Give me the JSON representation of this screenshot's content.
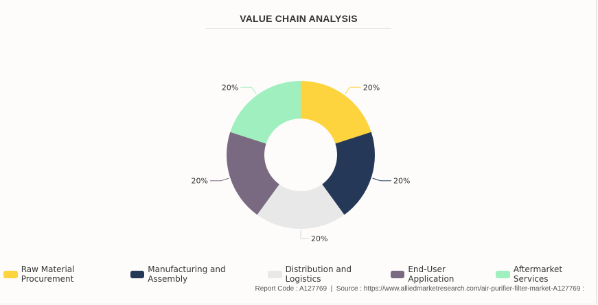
{
  "chart_data": {
    "type": "pie",
    "subtype": "donut",
    "title": "VALUE CHAIN ANALYSIS",
    "categories": [
      "Raw Material Procurement",
      "Manufacturing and Assembly",
      "Distribution and Logistics",
      "End-User Application",
      "Aftermarket Services"
    ],
    "values": [
      20,
      20,
      20,
      20,
      20
    ],
    "labels": [
      "20%",
      "20%",
      "20%",
      "20%",
      "20%"
    ],
    "colors": [
      "#fdd43e",
      "#253858",
      "#e8e8e8",
      "#7a6a81",
      "#a0efbf"
    ],
    "legend_position": "bottom"
  },
  "footer": {
    "text": "Report Code : A127769  |  Source : https://www.alliedmarketresearch.com/air-purifier-filter-market-A127769 :"
  }
}
